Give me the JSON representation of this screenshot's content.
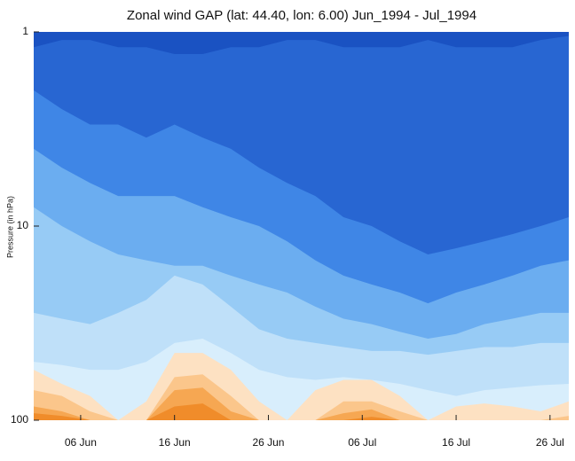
{
  "chart_data": {
    "type": "contour",
    "title": "Zonal wind GAP (lat: 44.40, lon: 6.00) Jun_1994 - Jul_1994",
    "ylabel": "Pressure (in hPa)",
    "log_y": true,
    "ylim": [
      100,
      1
    ],
    "yticks": [
      1,
      10,
      100
    ],
    "xticks": [
      "06 Jun",
      "16 Jun",
      "26 Jun",
      "06 Jul",
      "16 Jul",
      "26 Jul"
    ],
    "x": [
      "01 Jun",
      "04 Jun",
      "07 Jun",
      "10 Jun",
      "13 Jun",
      "16 Jun",
      "19 Jun",
      "22 Jun",
      "25 Jun",
      "28 Jun",
      "01 Jul",
      "04 Jul",
      "07 Jul",
      "10 Jul",
      "13 Jul",
      "16 Jul",
      "19 Jul",
      "22 Jul",
      "25 Jul",
      "28 Jul"
    ],
    "base_color": "#1a52c2",
    "series": [
      {
        "color": "#2866d2",
        "values": [
          1.2,
          1.1,
          1.1,
          1.2,
          1.2,
          1.3,
          1.3,
          1.2,
          1.2,
          1.1,
          1.1,
          1.2,
          1.2,
          1.2,
          1.1,
          1.2,
          1.2,
          1.2,
          1.1,
          1.05
        ]
      },
      {
        "color": "#3f86e6",
        "values": [
          2,
          2.5,
          3,
          3,
          3.5,
          3,
          3.5,
          4,
          5,
          6,
          7,
          9,
          10,
          12,
          14,
          13,
          12,
          11,
          10,
          9
        ]
      },
      {
        "color": "#6badf0",
        "values": [
          4,
          5,
          6,
          7,
          7,
          7,
          8,
          9,
          10,
          12,
          15,
          18,
          20,
          22,
          25,
          22,
          20,
          18,
          16,
          15
        ]
      },
      {
        "color": "#97cbf5",
        "values": [
          8,
          10,
          12,
          14,
          15,
          16,
          16,
          18,
          20,
          22,
          26,
          30,
          32,
          35,
          38,
          36,
          32,
          30,
          28,
          28
        ]
      },
      {
        "color": "#bfe0f9",
        "values": [
          28,
          30,
          32,
          28,
          24,
          18,
          20,
          26,
          34,
          38,
          40,
          42,
          44,
          44,
          46,
          44,
          42,
          42,
          40,
          40
        ]
      },
      {
        "color": "#d8eefc",
        "values": [
          50,
          52,
          55,
          55,
          50,
          40,
          38,
          45,
          55,
          60,
          62,
          60,
          62,
          65,
          70,
          75,
          70,
          68,
          66,
          65
        ]
      },
      {
        "color": "#fde1c2",
        "values": [
          55,
          65,
          75,
          100,
          80,
          45,
          45,
          55,
          80,
          100,
          70,
          62,
          62,
          75,
          100,
          85,
          82,
          85,
          90,
          80
        ]
      },
      {
        "color": "#fbc68b",
        "values": [
          70,
          75,
          90,
          100,
          100,
          60,
          58,
          75,
          100,
          100,
          100,
          80,
          80,
          90,
          100,
          100,
          100,
          100,
          100,
          95
        ]
      },
      {
        "color": "#f6a752",
        "values": [
          85,
          90,
          100,
          100,
          100,
          70,
          68,
          90,
          100,
          100,
          100,
          92,
          88,
          100,
          100,
          100,
          100,
          100,
          100,
          100
        ]
      },
      {
        "color": "#f08c2a",
        "values": [
          92,
          95,
          100,
          100,
          100,
          85,
          82,
          100,
          100,
          100,
          100,
          100,
          96,
          100,
          100,
          100,
          100,
          100,
          100,
          100
        ]
      }
    ]
  }
}
